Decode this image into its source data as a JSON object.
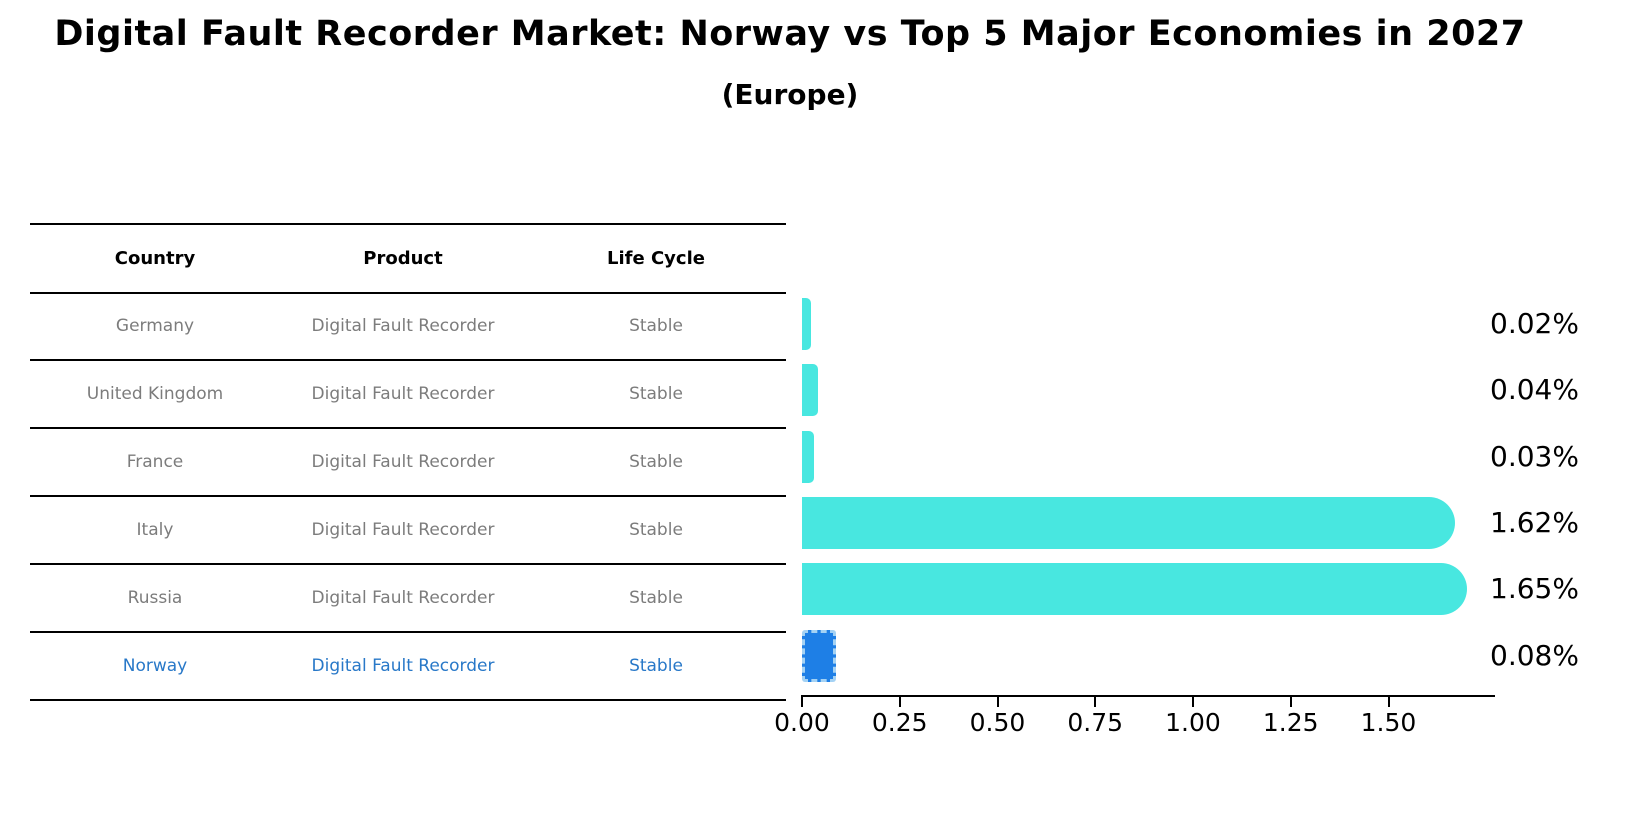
{
  "title": "Digital Fault Recorder Market: Norway vs Top 5 Major Economies in 2027",
  "subtitle": "(Europe)",
  "table": {
    "columns": [
      "Country",
      "Product",
      "Life Cycle"
    ],
    "rows": [
      {
        "country": "Germany",
        "product": "Digital Fault Recorder",
        "life_cycle": "Stable",
        "highlighted": false
      },
      {
        "country": "United Kingdom",
        "product": "Digital Fault Recorder",
        "life_cycle": "Stable",
        "highlighted": false
      },
      {
        "country": "France",
        "product": "Digital Fault Recorder",
        "life_cycle": "Stable",
        "highlighted": false
      },
      {
        "country": "Italy",
        "product": "Digital Fault Recorder",
        "life_cycle": "Stable",
        "highlighted": false
      },
      {
        "country": "Russia",
        "product": "Digital Fault Recorder",
        "life_cycle": "Stable",
        "highlighted": false
      },
      {
        "country": "Norway",
        "product": "Digital Fault Recorder",
        "life_cycle": "Stable",
        "highlighted": true
      }
    ]
  },
  "chart_data": {
    "type": "bar",
    "orientation": "horizontal",
    "title": "Digital Fault Recorder Market: Norway vs Top 5 Major Economies in 2027 (Europe)",
    "categories": [
      "Germany",
      "United Kingdom",
      "France",
      "Italy",
      "Russia",
      "Norway"
    ],
    "values": [
      0.02,
      0.04,
      0.03,
      1.62,
      1.65,
      0.08
    ],
    "value_labels": [
      "0.02%",
      "0.04%",
      "0.03%",
      "1.62%",
      "1.65%",
      "0.08%"
    ],
    "x_ticks": [
      "0.00",
      "0.25",
      "0.50",
      "0.75",
      "1.00",
      "1.25",
      "1.50"
    ],
    "x_tick_values": [
      0.0,
      0.25,
      0.5,
      0.75,
      1.0,
      1.25,
      1.5
    ],
    "xlim": [
      0,
      1.73
    ],
    "xlabel": "",
    "ylabel": "",
    "grid": false,
    "legend": false,
    "highlight_index": 5,
    "colors": {
      "bar": "#48e7e0",
      "highlight_bar": "#1e7fe6",
      "highlight_border": "#a4d2f4",
      "row_text": "#7c7c7c",
      "highlight_text": "#2878c8",
      "axis": "#000000"
    }
  }
}
